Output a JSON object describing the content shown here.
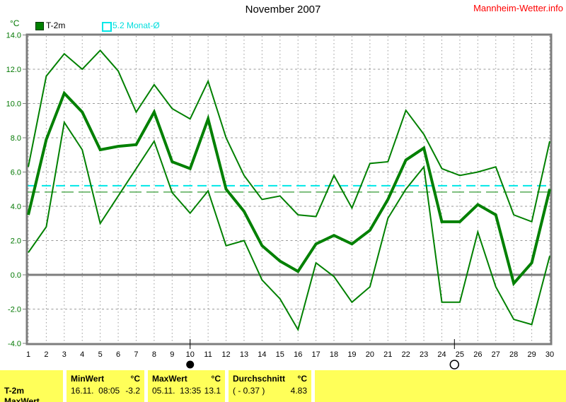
{
  "header": {
    "title": "November 2007",
    "site_link": "Mannheim-Wetter.info"
  },
  "legend": {
    "unit_label": "°C",
    "series_label": "T-2m",
    "average_label": "5.2 Monat-Ø"
  },
  "colors": {
    "series_green": "#008000",
    "average_cyan": "#00e8e8",
    "grid_gray": "#9a9a9a",
    "frame_gray": "#7d7d7d",
    "axis_label_green": "#007700",
    "link_red": "#ff0000",
    "table_yellow": "#ffff59"
  },
  "chart_data": {
    "type": "line",
    "title": "November 2007",
    "xlabel": "",
    "ylabel": "°C",
    "x": [
      1,
      2,
      3,
      4,
      5,
      6,
      7,
      8,
      9,
      10,
      11,
      12,
      13,
      14,
      15,
      16,
      17,
      18,
      19,
      20,
      21,
      22,
      23,
      24,
      25,
      26,
      27,
      28,
      29,
      30
    ],
    "xlim": [
      1,
      30
    ],
    "ylim": [
      -4,
      14
    ],
    "yticks": [
      14,
      12,
      10,
      8,
      6,
      4,
      2,
      0,
      -2,
      -4
    ],
    "grid": true,
    "legend_position": "top-left",
    "series": [
      {
        "name": "max",
        "color": "#008000",
        "width": 2,
        "values": [
          6.3,
          11.6,
          12.9,
          12.0,
          13.1,
          11.9,
          9.5,
          11.1,
          9.7,
          9.1,
          11.3,
          8.0,
          5.8,
          4.4,
          4.6,
          3.5,
          3.4,
          5.8,
          3.9,
          6.5,
          6.6,
          9.6,
          8.2,
          6.2,
          5.8,
          6.0,
          6.3,
          3.5,
          3.1,
          7.8
        ]
      },
      {
        "name": "min",
        "color": "#008000",
        "width": 2,
        "values": [
          1.3,
          2.8,
          8.9,
          7.3,
          3.0,
          4.6,
          6.2,
          7.8,
          4.8,
          3.6,
          4.9,
          1.7,
          2.0,
          -0.3,
          -1.4,
          -3.2,
          0.7,
          -0.1,
          -1.6,
          -0.7,
          3.3,
          5.0,
          6.3,
          -1.6,
          -1.6,
          2.5,
          -0.7,
          -2.6,
          -2.9,
          1.1
        ]
      },
      {
        "name": "mean",
        "color": "#008000",
        "width": 4,
        "values": [
          3.5,
          7.9,
          10.6,
          9.5,
          7.3,
          7.5,
          7.6,
          9.5,
          6.6,
          6.2,
          9.1,
          5.0,
          3.7,
          1.7,
          0.8,
          0.2,
          1.8,
          2.3,
          1.8,
          2.6,
          4.4,
          6.7,
          7.4,
          3.1,
          3.1,
          4.1,
          3.5,
          -0.5,
          0.7,
          5.0
        ]
      }
    ],
    "reference_lines": [
      {
        "label": "5.2 Monat-Ø",
        "value": 5.2,
        "color": "#00e8e8",
        "dash": "13 7",
        "width": 2
      },
      {
        "label": "Durchschnitt 4.83",
        "value": 4.83,
        "color": "#008000",
        "dash": "17 7",
        "width": 1
      }
    ],
    "markers": [
      {
        "day": 10,
        "symbol": "new-moon"
      },
      {
        "day": 24.7,
        "symbol": "full-moon"
      }
    ]
  },
  "table": {
    "row_label": "T-2m",
    "partial_row_label": "MaxWert",
    "min": {
      "header": "MinWert",
      "unit": "°C",
      "datetime": "16.11.  08:05",
      "value": "-3.2"
    },
    "max": {
      "header": "MaxWert",
      "unit": "°C",
      "datetime": "05.11.  13:35",
      "value": "13.1"
    },
    "avg": {
      "header": "Durchschnitt",
      "unit": "°C",
      "deviation": "( - 0.37 )",
      "value": "4.83"
    }
  }
}
